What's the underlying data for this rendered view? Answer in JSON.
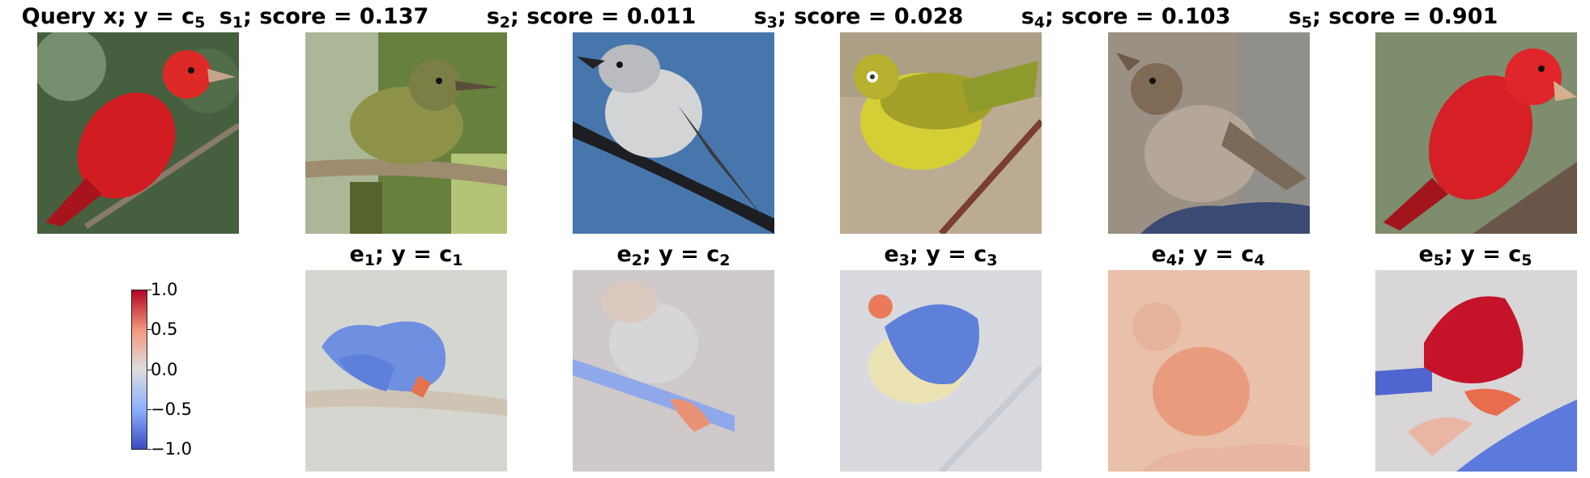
{
  "top_titles": [
    {
      "main": "Query x; y = c",
      "sub": "5",
      "lead": "",
      "lead_sub": ""
    },
    {
      "main": "; score = 0.137",
      "lead": "s",
      "lead_sub": "1"
    },
    {
      "main": "; score = 0.011",
      "lead": "s",
      "lead_sub": "2"
    },
    {
      "main": "; score = 0.028",
      "lead": "s",
      "lead_sub": "3"
    },
    {
      "main": "; score = 0.103",
      "lead": "s",
      "lead_sub": "4"
    },
    {
      "main": "; score = 0.901",
      "lead": "s",
      "lead_sub": "5"
    }
  ],
  "bottom_titles": [
    {
      "lead": "e",
      "lead_sub": "1",
      "mid": "; y = c",
      "sub": "1"
    },
    {
      "lead": "e",
      "lead_sub": "2",
      "mid": "; y = c",
      "sub": "2"
    },
    {
      "lead": "e",
      "lead_sub": "3",
      "mid": "; y = c",
      "sub": "3"
    },
    {
      "lead": "e",
      "lead_sub": "4",
      "mid": "; y = c",
      "sub": "4"
    },
    {
      "lead": "e",
      "lead_sub": "5",
      "mid": "; y = c",
      "sub": "5"
    }
  ],
  "colorbar": {
    "ticks": [
      "1.0",
      "0.5",
      "0.0",
      "−0.5",
      "−1.0"
    ],
    "colormap": [
      "#b40426",
      "#f4987a",
      "#dddddd",
      "#8db0fe",
      "#3b4cc0"
    ]
  }
}
